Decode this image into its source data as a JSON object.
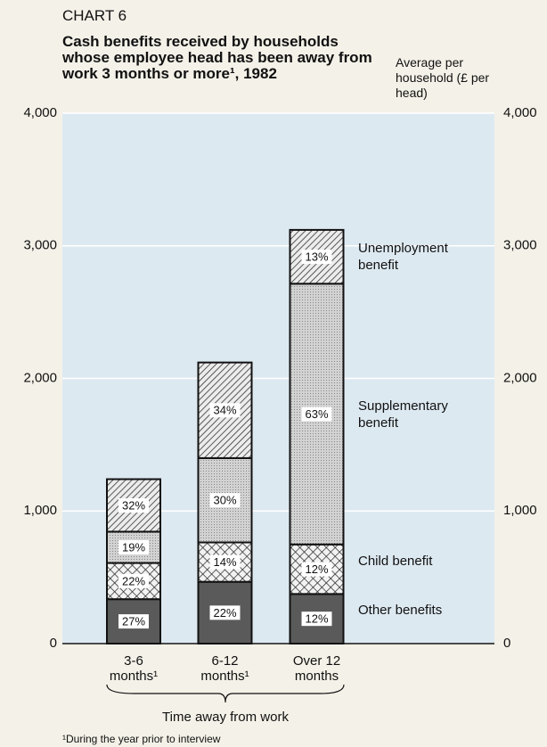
{
  "chart_data": {
    "type": "stacked_bar",
    "chart_label": "CHART 6",
    "title": "Cash benefits received by households whose employee head has been away from work 3 months or more¹, 1982",
    "y_axis_label": "Average per household (£ per head)",
    "x_axis_label": "Time away from work",
    "footnote": "¹During the year prior to interview",
    "categories": [
      "3-6 months¹",
      "6-12 months¹",
      "Over 12 months"
    ],
    "series": [
      {
        "name": "Other benefits",
        "color": "#5a5a5a",
        "pattern": "solid",
        "values": [
          335,
          466,
          374
        ],
        "labels": [
          "27%",
          "22%",
          "12%"
        ]
      },
      {
        "name": "Child benefit",
        "color": "#eeeeee",
        "pattern": "crosshatch",
        "values": [
          273,
          297,
          374
        ],
        "labels": [
          "22%",
          "14%",
          "12%"
        ]
      },
      {
        "name": "Supplementary benefit",
        "color": "#cfcfcf",
        "pattern": "dots",
        "values": [
          236,
          636,
          1966
        ],
        "labels": [
          "19%",
          "30%",
          "63%"
        ]
      },
      {
        "name": "Unemployment benefit",
        "color": "#e6e6e6",
        "pattern": "hatch",
        "values": [
          396,
          721,
          406
        ],
        "labels": [
          "32%",
          "34%",
          "13%"
        ]
      }
    ],
    "ylim": [
      0,
      4000
    ],
    "yticks": [
      0,
      {
        "value": 1000,
        "label": "1,000"
      },
      {
        "value": 2000,
        "label": "2,000"
      },
      {
        "value": 3000,
        "label": "3,000"
      },
      {
        "value": 4000,
        "label": "4,000"
      }
    ],
    "grid": true,
    "plot_color": "#dde9f1"
  }
}
